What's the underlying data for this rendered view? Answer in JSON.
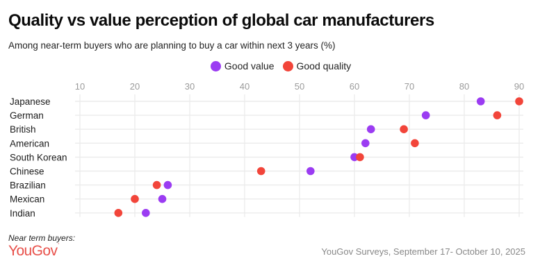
{
  "header": {
    "title": "Quality vs value perception of global car manufacturers",
    "subtitle": "Among near-term buyers who are planning to buy a car within next 3 years (%)"
  },
  "footer": {
    "note": "Near term buyers:",
    "logo": "YouGov",
    "source": "YouGov Surveys, September 17- October 10, 2025"
  },
  "chart_data": {
    "type": "scatter",
    "subtype": "dot-plot",
    "title": "Quality vs value perception of global car manufacturers",
    "subtitle": "Among near-term buyers who are planning to buy a car within next 3 years (%)",
    "xlabel": "",
    "ylabel": "",
    "xlim": [
      10,
      90
    ],
    "xticks": [
      10,
      20,
      30,
      40,
      50,
      60,
      70,
      80,
      90
    ],
    "grid": true,
    "legend_position": "top-center",
    "categories": [
      "Japanese",
      "German",
      "British",
      "American",
      "South Korean",
      "Chinese",
      "Brazilian",
      "Mexican",
      "Indian"
    ],
    "series": [
      {
        "name": "Good value",
        "color": "#9b3cf2",
        "values": [
          83,
          73,
          63,
          62,
          60,
          52,
          26,
          25,
          22
        ]
      },
      {
        "name": "Good quality",
        "color": "#f2453a",
        "values": [
          90,
          86,
          69,
          71,
          61,
          43,
          24,
          20,
          17
        ]
      }
    ]
  }
}
